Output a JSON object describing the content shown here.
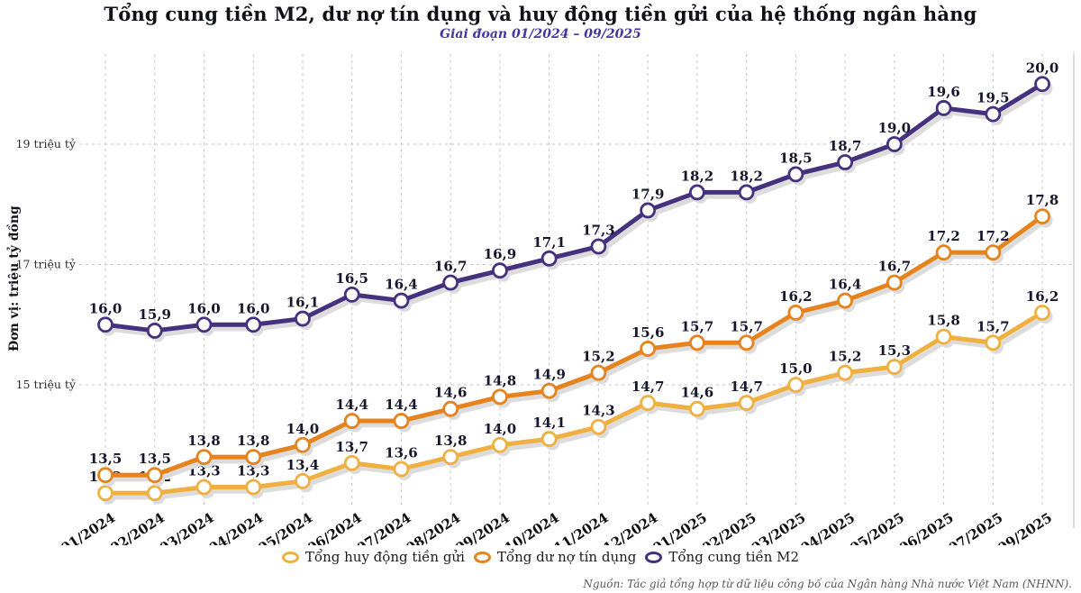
{
  "header": {
    "title": "Tổng cung tiền M2, dư nợ tín dụng và huy động tiền gửi của hệ thống ngân hàng",
    "subtitle": "Giai đoạn 01/2024 – 09/2025"
  },
  "axes": {
    "y_title": "Đơn vị: triệu tỷ đồng",
    "y_ticks": [
      {
        "value": 15,
        "label": "15 triệu tỷ"
      },
      {
        "value": 17,
        "label": "17 triệu tỷ"
      },
      {
        "value": 19,
        "label": "19 triệu tỷ"
      }
    ]
  },
  "chart_data": {
    "type": "line",
    "title": "Tổng cung tiền M2, dư nợ tín dụng và huy động tiền gửi của hệ thống ngân hàng",
    "subtitle": "Giai đoạn 01/2024 – 09/2025",
    "ylabel": "Đơn vị: triệu tỷ đồng",
    "ylim": [
      13,
      20.6
    ],
    "grid": "dashed",
    "legend_position": "bottom",
    "decimal_separator": ",",
    "point_labels": true,
    "categories": [
      "01/2024",
      "02/2024",
      "03/2024",
      "04/2024",
      "05/2024",
      "06/2024",
      "07/2024",
      "08/2024",
      "09/2024",
      "10/2024",
      "11/2024",
      "12/2024",
      "01/2025",
      "02/2025",
      "03/2025",
      "04/2025",
      "05/2025",
      "06/2025",
      "07/2025",
      "09/2025"
    ],
    "series": [
      {
        "name": "Tổng huy động tiền gửi",
        "color": "#f0b041",
        "values": [
          13.2,
          13.2,
          13.3,
          13.3,
          13.4,
          13.7,
          13.6,
          13.8,
          14.0,
          14.1,
          14.3,
          14.7,
          14.6,
          14.7,
          15.0,
          15.2,
          15.3,
          15.8,
          15.7,
          16.2
        ]
      },
      {
        "name": "Tổng dư nợ tín dụng",
        "color": "#e5831e",
        "values": [
          13.5,
          13.5,
          13.8,
          13.8,
          14.0,
          14.4,
          14.4,
          14.6,
          14.8,
          14.9,
          15.2,
          15.6,
          15.7,
          15.7,
          16.2,
          16.4,
          16.7,
          17.2,
          17.2,
          17.8
        ]
      },
      {
        "name": "Tổng cung tiền M2",
        "color": "#46317e",
        "values": [
          16.0,
          15.9,
          16.0,
          16.0,
          16.1,
          16.5,
          16.4,
          16.7,
          16.9,
          17.1,
          17.3,
          17.9,
          18.2,
          18.2,
          18.5,
          18.7,
          19.0,
          19.6,
          19.5,
          20.0
        ]
      }
    ]
  },
  "footer": {
    "source": "Nguồn: Tác giả tổng hợp từ dữ liệu công bố của Ngân hàng Nhà nước Việt Nam (NHNN)."
  }
}
